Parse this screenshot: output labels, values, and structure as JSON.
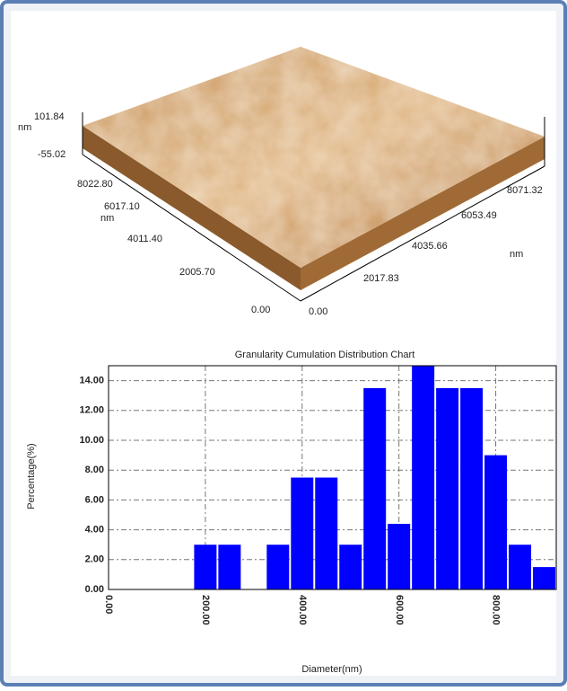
{
  "surface_image": {
    "z_max": "101.84",
    "z_unit": "nm",
    "z_min": "-55.02",
    "y_ticks": [
      "8022.80",
      "6017.10",
      "4011.40",
      "2005.70",
      "0.00"
    ],
    "y_unit": "nm",
    "x_ticks": [
      "0.00",
      "2017.83",
      "4035.66",
      "6053.49",
      "8071.32"
    ],
    "x_unit": "nm"
  },
  "chart_data": {
    "type": "histogram",
    "title": "Granularity Cumulation Distribution  Chart",
    "x_label": "Diameter(nm)",
    "y_label": "Percentage(%)",
    "bins": [
      175,
      225,
      275,
      325,
      375,
      425,
      475,
      525,
      575,
      625,
      675,
      725,
      775,
      825,
      875,
      925
    ],
    "values": [
      3,
      3,
      0,
      3,
      7.5,
      7.5,
      3,
      13.5,
      4.4,
      15,
      13.5,
      13.5,
      9,
      3,
      1.5
    ],
    "color": "#0000ff",
    "xlim": [
      0,
      925
    ],
    "ylim": [
      0,
      15
    ],
    "xticks": [
      {
        "value": 0,
        "label": "0.00"
      },
      {
        "value": 200,
        "label": "200.00"
      },
      {
        "value": 400,
        "label": "400.00"
      },
      {
        "value": 600,
        "label": "600.00"
      },
      {
        "value": 800,
        "label": "800.00"
      }
    ],
    "yticks": [
      {
        "value": 0,
        "label": "0.00"
      },
      {
        "value": 2,
        "label": "2.00"
      },
      {
        "value": 4,
        "label": "4.00"
      },
      {
        "value": 6,
        "label": "6.00"
      },
      {
        "value": 8,
        "label": "8.00"
      },
      {
        "value": 10,
        "label": "10.00"
      },
      {
        "value": 12,
        "label": "12.00"
      },
      {
        "value": 14,
        "label": "14.00"
      }
    ],
    "grid": true
  }
}
